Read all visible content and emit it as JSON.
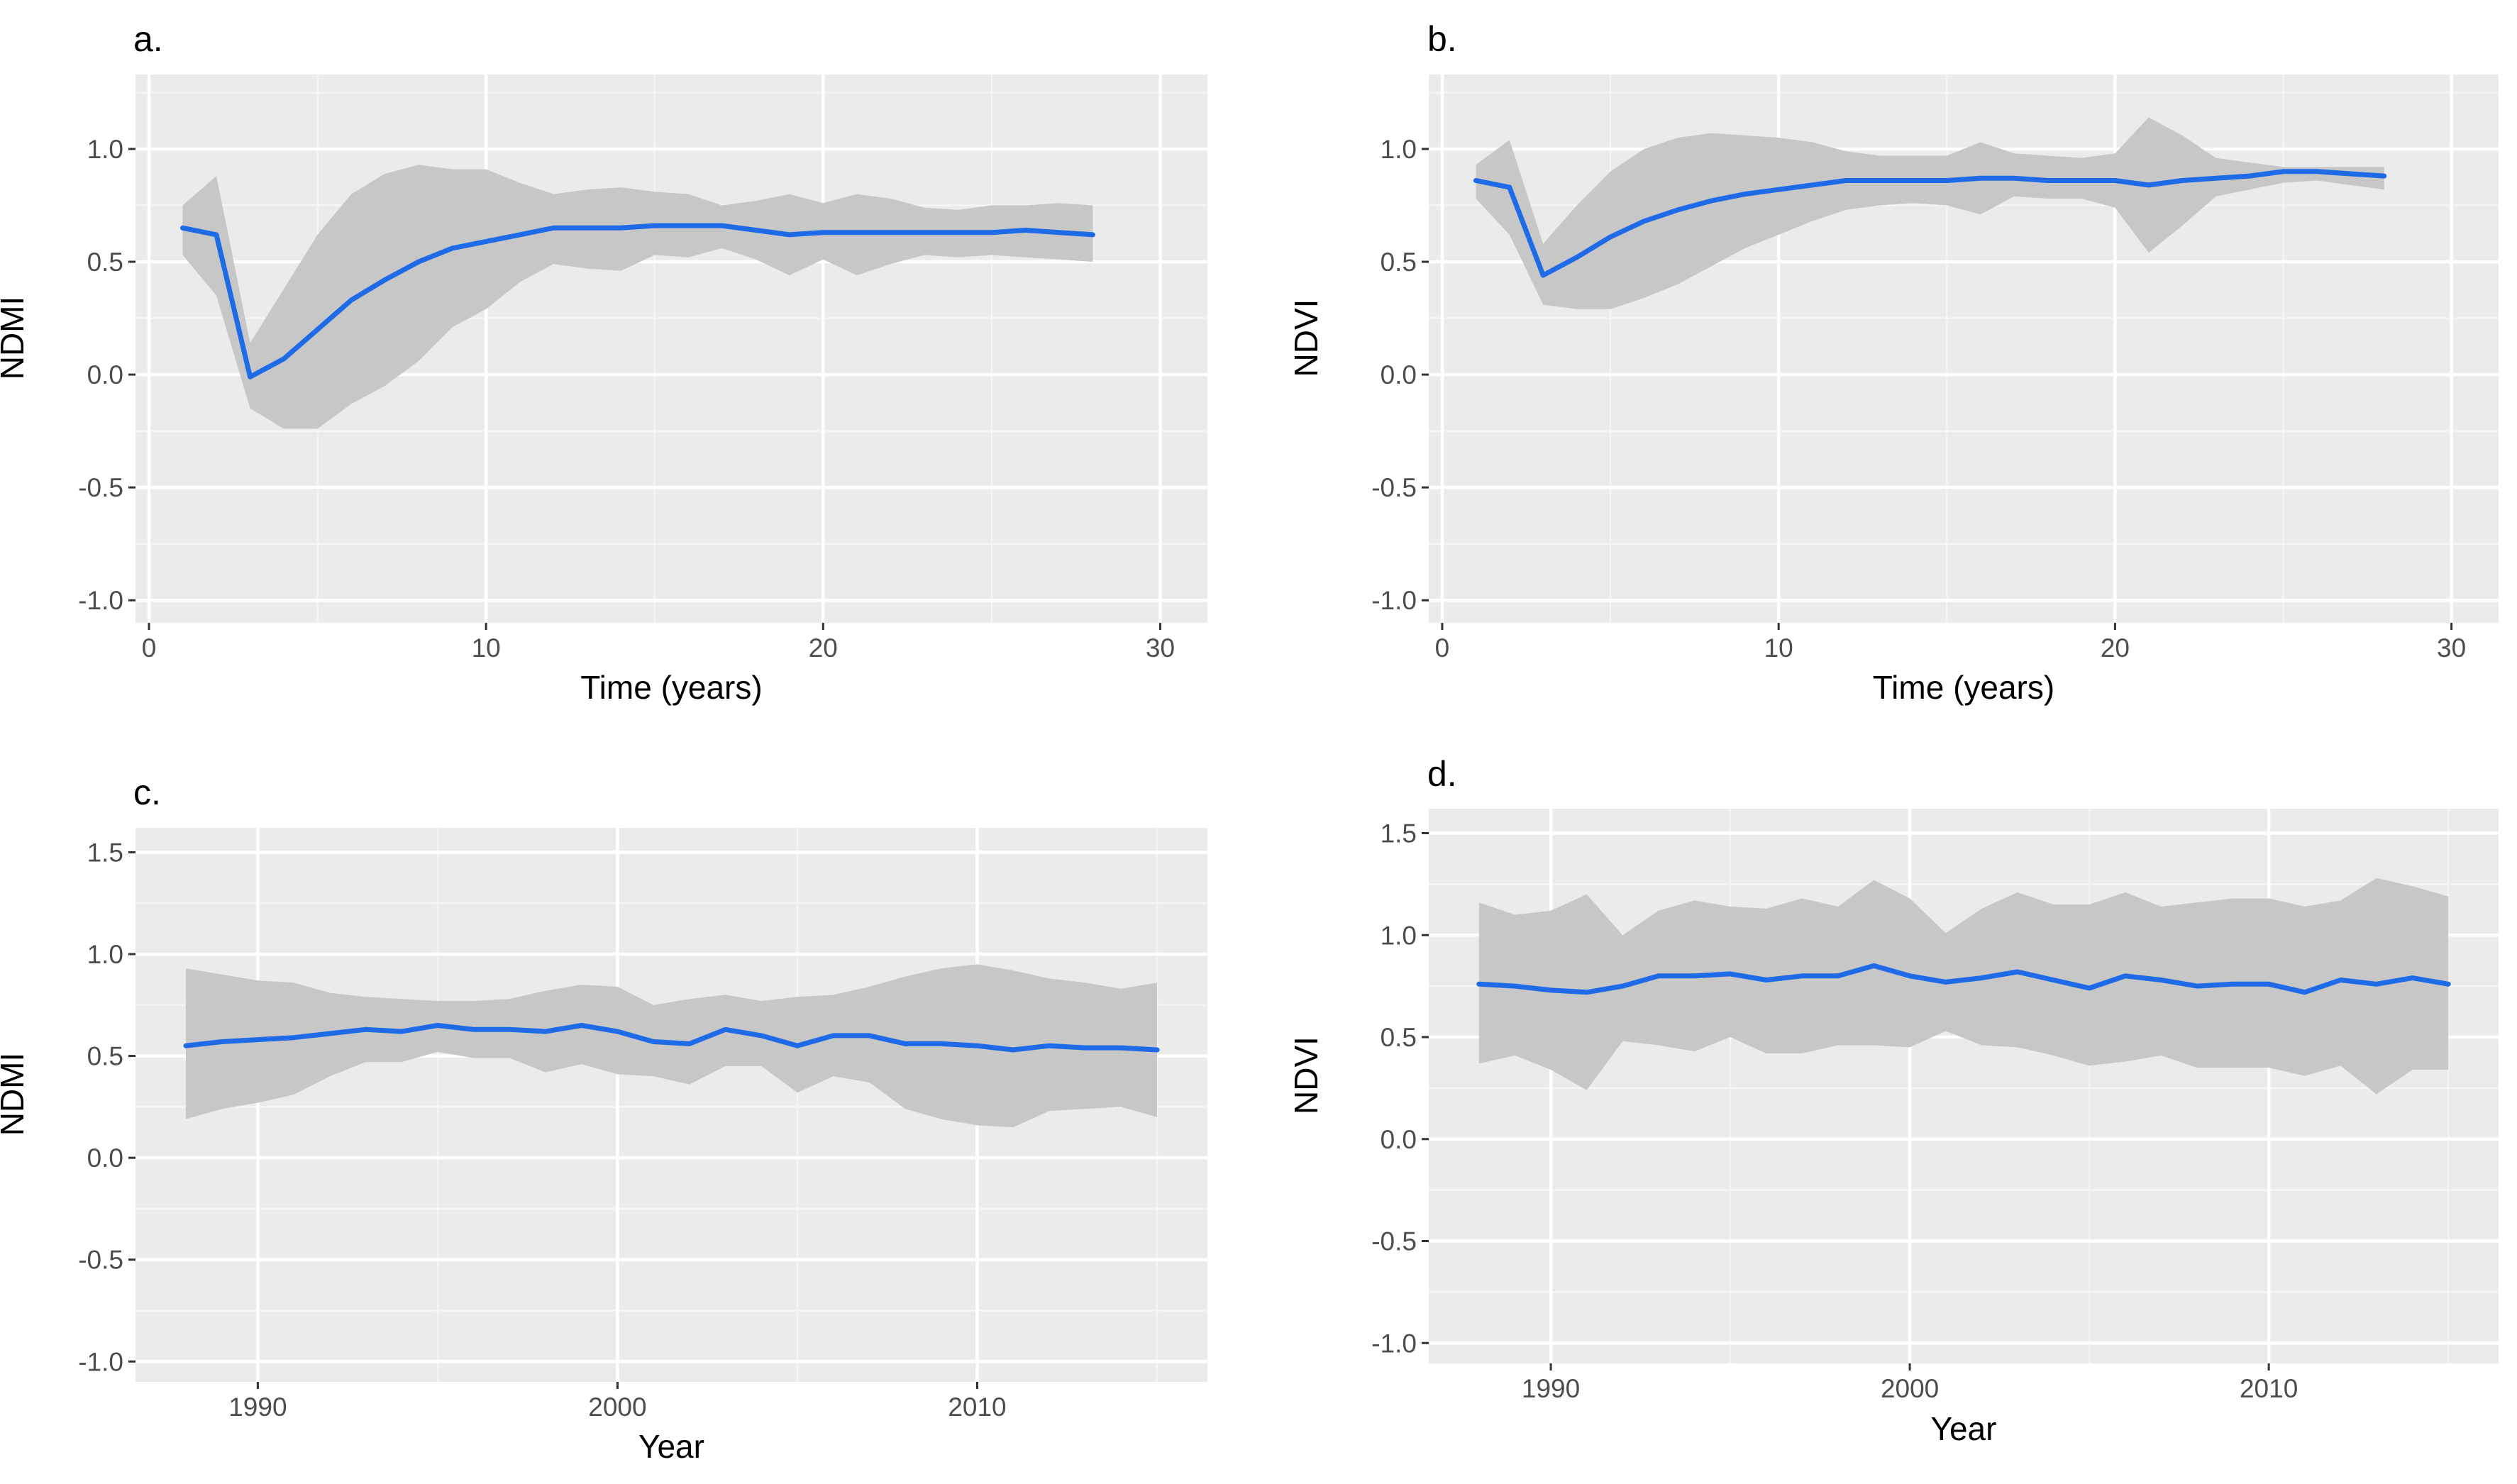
{
  "chart_data": [
    {
      "id": "a",
      "type": "line",
      "panel_label": "a.",
      "xlabel": "Time (years)",
      "ylabel": "NDMI",
      "xlim": [
        -0.4,
        31.4
      ],
      "ylim": [
        -1.1,
        1.33
      ],
      "xticks": [
        0,
        10,
        20,
        30
      ],
      "xtick_labels": [
        "0",
        "10",
        "20",
        "30"
      ],
      "yticks": [
        -1.0,
        -0.5,
        0.0,
        0.5,
        1.0
      ],
      "ytick_labels": [
        "-1.0",
        "-0.5",
        "0.0",
        "0.5",
        "1.0"
      ],
      "x": [
        1,
        2,
        3,
        4,
        5,
        6,
        7,
        8,
        9,
        10,
        11,
        12,
        13,
        14,
        15,
        16,
        17,
        18,
        19,
        20,
        21,
        22,
        23,
        24,
        25,
        26,
        27,
        28
      ],
      "series": [
        {
          "name": "mean",
          "values": [
            0.65,
            0.62,
            -0.01,
            0.07,
            0.2,
            0.33,
            0.42,
            0.5,
            0.56,
            0.59,
            0.62,
            0.65,
            0.65,
            0.65,
            0.66,
            0.66,
            0.66,
            0.64,
            0.62,
            0.63,
            0.63,
            0.63,
            0.63,
            0.63,
            0.63,
            0.64,
            0.63,
            0.62
          ]
        }
      ],
      "ribbon": {
        "upper": [
          0.75,
          0.88,
          0.14,
          0.38,
          0.62,
          0.8,
          0.89,
          0.93,
          0.91,
          0.91,
          0.85,
          0.8,
          0.82,
          0.83,
          0.81,
          0.8,
          0.75,
          0.77,
          0.8,
          0.76,
          0.8,
          0.78,
          0.74,
          0.73,
          0.75,
          0.75,
          0.76,
          0.75
        ],
        "lower": [
          0.53,
          0.35,
          -0.15,
          -0.24,
          -0.24,
          -0.13,
          -0.05,
          0.06,
          0.21,
          0.29,
          0.41,
          0.49,
          0.47,
          0.46,
          0.53,
          0.52,
          0.56,
          0.51,
          0.44,
          0.51,
          0.44,
          0.49,
          0.53,
          0.52,
          0.53,
          0.52,
          0.51,
          0.5
        ]
      }
    },
    {
      "id": "b",
      "type": "line",
      "panel_label": "b.",
      "xlabel": "Time (years)",
      "ylabel": "NDVI",
      "xlim": [
        -0.4,
        31.4
      ],
      "ylim": [
        -1.1,
        1.33
      ],
      "xticks": [
        0,
        10,
        20,
        30
      ],
      "xtick_labels": [
        "0",
        "10",
        "20",
        "30"
      ],
      "yticks": [
        -1.0,
        -0.5,
        0.0,
        0.5,
        1.0
      ],
      "ytick_labels": [
        "-1.0",
        "-0.5",
        "0.0",
        "0.5",
        "1.0"
      ],
      "x": [
        1,
        2,
        3,
        4,
        5,
        6,
        7,
        8,
        9,
        10,
        11,
        12,
        13,
        14,
        15,
        16,
        17,
        18,
        19,
        20,
        21,
        22,
        23,
        24,
        25,
        26,
        27,
        28
      ],
      "series": [
        {
          "name": "mean",
          "values": [
            0.86,
            0.83,
            0.44,
            0.52,
            0.61,
            0.68,
            0.73,
            0.77,
            0.8,
            0.82,
            0.84,
            0.86,
            0.86,
            0.86,
            0.86,
            0.87,
            0.87,
            0.86,
            0.86,
            0.86,
            0.84,
            0.86,
            0.87,
            0.88,
            0.9,
            0.9,
            0.89,
            0.88
          ]
        }
      ],
      "ribbon": {
        "upper": [
          0.93,
          1.04,
          0.58,
          0.75,
          0.9,
          1.0,
          1.05,
          1.07,
          1.06,
          1.05,
          1.03,
          0.99,
          0.97,
          0.97,
          0.97,
          1.03,
          0.98,
          0.97,
          0.96,
          0.98,
          1.14,
          1.06,
          0.96,
          0.94,
          0.92,
          0.92,
          0.92,
          0.92
        ],
        "lower": [
          0.78,
          0.62,
          0.31,
          0.29,
          0.29,
          0.34,
          0.4,
          0.48,
          0.56,
          0.62,
          0.68,
          0.73,
          0.75,
          0.76,
          0.75,
          0.71,
          0.79,
          0.78,
          0.78,
          0.74,
          0.54,
          0.66,
          0.79,
          0.82,
          0.85,
          0.86,
          0.84,
          0.82
        ]
      }
    },
    {
      "id": "c",
      "type": "line",
      "panel_label": "c.",
      "xlabel": "Year",
      "ylabel": "NDMI",
      "xlim": [
        1986.6,
        2016.4
      ],
      "ylim": [
        -1.1,
        1.62
      ],
      "xticks": [
        1990,
        2000,
        2010
      ],
      "xtick_labels": [
        "1990",
        "2000",
        "2010"
      ],
      "yticks": [
        -1.0,
        -0.5,
        0.0,
        0.5,
        1.0,
        1.5
      ],
      "ytick_labels": [
        "-1.0",
        "-0.5",
        "0.0",
        "0.5",
        "1.0",
        "1.5"
      ],
      "x": [
        1988,
        1989,
        1990,
        1991,
        1992,
        1993,
        1994,
        1995,
        1996,
        1997,
        1998,
        1999,
        2000,
        2001,
        2002,
        2003,
        2004,
        2005,
        2006,
        2007,
        2008,
        2009,
        2010,
        2011,
        2012,
        2013,
        2014,
        2015
      ],
      "series": [
        {
          "name": "mean",
          "values": [
            0.55,
            0.57,
            0.58,
            0.59,
            0.61,
            0.63,
            0.62,
            0.65,
            0.63,
            0.63,
            0.62,
            0.65,
            0.62,
            0.57,
            0.56,
            0.63,
            0.6,
            0.55,
            0.6,
            0.6,
            0.56,
            0.56,
            0.55,
            0.53,
            0.55,
            0.54,
            0.54,
            0.53
          ]
        }
      ],
      "ribbon": {
        "upper": [
          0.93,
          0.9,
          0.87,
          0.86,
          0.81,
          0.79,
          0.78,
          0.77,
          0.77,
          0.78,
          0.82,
          0.85,
          0.84,
          0.75,
          0.78,
          0.8,
          0.77,
          0.79,
          0.8,
          0.84,
          0.89,
          0.93,
          0.95,
          0.92,
          0.88,
          0.86,
          0.83,
          0.86
        ],
        "lower": [
          0.19,
          0.24,
          0.27,
          0.31,
          0.4,
          0.47,
          0.47,
          0.52,
          0.49,
          0.49,
          0.42,
          0.46,
          0.41,
          0.4,
          0.36,
          0.45,
          0.45,
          0.32,
          0.4,
          0.37,
          0.24,
          0.19,
          0.16,
          0.15,
          0.23,
          0.24,
          0.25,
          0.2
        ]
      }
    },
    {
      "id": "d",
      "type": "line",
      "panel_label": "d.",
      "xlabel": "Year",
      "ylabel": "NDVI",
      "xlim": [
        1986.6,
        2016.4
      ],
      "ylim": [
        -1.1,
        1.62
      ],
      "xticks": [
        1990,
        2000,
        2010
      ],
      "xtick_labels": [
        "1990",
        "2000",
        "2010"
      ],
      "yticks": [
        -1.0,
        -0.5,
        0.0,
        0.5,
        1.0,
        1.5
      ],
      "ytick_labels": [
        "-1.0",
        "-0.5",
        "0.0",
        "0.5",
        "1.0",
        "1.5"
      ],
      "x": [
        1988,
        1989,
        1990,
        1991,
        1992,
        1993,
        1994,
        1995,
        1996,
        1997,
        1998,
        1999,
        2000,
        2001,
        2002,
        2003,
        2004,
        2005,
        2006,
        2007,
        2008,
        2009,
        2010,
        2011,
        2012,
        2013,
        2014,
        2015
      ],
      "series": [
        {
          "name": "mean",
          "values": [
            0.76,
            0.75,
            0.73,
            0.72,
            0.75,
            0.8,
            0.8,
            0.81,
            0.78,
            0.8,
            0.8,
            0.85,
            0.8,
            0.77,
            0.79,
            0.82,
            0.78,
            0.74,
            0.8,
            0.78,
            0.75,
            0.76,
            0.76,
            0.72,
            0.78,
            0.76,
            0.79,
            0.76
          ]
        }
      ],
      "ribbon": {
        "upper": [
          1.16,
          1.1,
          1.12,
          1.2,
          1.0,
          1.12,
          1.17,
          1.14,
          1.13,
          1.18,
          1.14,
          1.27,
          1.18,
          1.01,
          1.13,
          1.21,
          1.15,
          1.15,
          1.21,
          1.14,
          1.16,
          1.18,
          1.18,
          1.14,
          1.17,
          1.28,
          1.24,
          1.19
        ],
        "lower": [
          0.37,
          0.41,
          0.34,
          0.24,
          0.48,
          0.46,
          0.43,
          0.5,
          0.42,
          0.42,
          0.46,
          0.46,
          0.45,
          0.53,
          0.46,
          0.45,
          0.41,
          0.36,
          0.38,
          0.41,
          0.35,
          0.35,
          0.35,
          0.31,
          0.36,
          0.22,
          0.34,
          0.34
        ]
      }
    }
  ]
}
